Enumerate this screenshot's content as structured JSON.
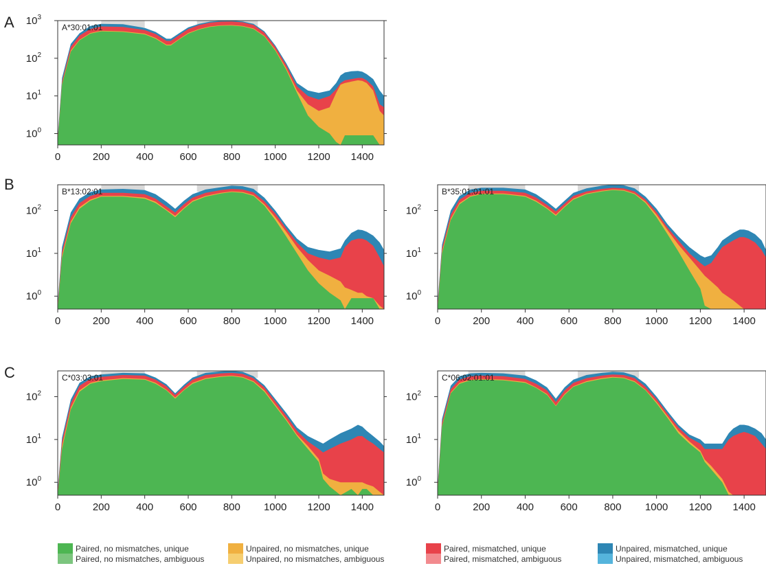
{
  "figure": {
    "panel_letters": [
      "A",
      "B",
      "C"
    ]
  },
  "legend": [
    {
      "label": "Paired, no mismatches, unique",
      "color": "#4DB652"
    },
    {
      "label": "Paired, no mismatches, ambiguous",
      "color": "#7CC57E"
    },
    {
      "label": "Unpaired, no mismatches, unique",
      "color": "#F0B040"
    },
    {
      "label": "Unpaired, no mismatches, ambiguous",
      "color": "#F6CE70"
    },
    {
      "label": "Paired, mismatched, unique",
      "color": "#E8424A"
    },
    {
      "label": "Paired, mismatched, ambiguous",
      "color": "#F28A8E"
    },
    {
      "label": "Unpaired, mismatched, unique",
      "color": "#2E86B4"
    },
    {
      "label": "Unpaired, mismatched, ambiguous",
      "color": "#55B4DC"
    }
  ],
  "chart_data": [
    {
      "type": "area",
      "panel": "A",
      "title": "A*30:01:01",
      "xlim": [
        0,
        1500
      ],
      "ylim": [
        0.5,
        1000
      ],
      "yscale": "log",
      "xticks": [
        0,
        200,
        400,
        600,
        800,
        1000,
        1200,
        1400
      ],
      "yticks": [
        "10^0",
        "10^1",
        "10^2",
        "10^3"
      ],
      "highlight_ranges": [
        [
          200,
          400
        ],
        [
          640,
          920
        ]
      ],
      "x": [
        0,
        20,
        60,
        100,
        150,
        200,
        300,
        400,
        450,
        500,
        520,
        560,
        600,
        650,
        700,
        750,
        800,
        850,
        900,
        950,
        1000,
        1050,
        1100,
        1150,
        1200,
        1250,
        1280,
        1300,
        1320,
        1350,
        1380,
        1400,
        1420,
        1450,
        1480,
        1500
      ],
      "series": [
        {
          "values": [
            0.6,
            20,
            150,
            300,
            450,
            520,
            500,
            430,
            330,
            220,
            220,
            320,
            450,
            580,
            680,
            730,
            740,
            700,
            600,
            380,
            160,
            50,
            12,
            3,
            1.5,
            1.0,
            0.6,
            0.5,
            0.9,
            0.9,
            0.9,
            0.9,
            0.9,
            0.9,
            0.5,
            0.5
          ]
        },
        {
          "values": [
            0.6,
            21,
            160,
            310,
            470,
            540,
            520,
            450,
            345,
            230,
            230,
            330,
            470,
            600,
            700,
            750,
            760,
            720,
            620,
            395,
            170,
            55,
            14,
            6,
            4,
            5,
            12,
            20,
            22,
            24,
            26,
            25,
            22,
            14,
            4,
            3
          ]
        },
        {
          "values": [
            0.7,
            24,
            200,
            400,
            600,
            700,
            680,
            560,
            440,
            290,
            290,
            420,
            600,
            760,
            880,
            940,
            950,
            900,
            770,
            480,
            200,
            66,
            18,
            10,
            8,
            10,
            15,
            22,
            26,
            28,
            30,
            30,
            26,
            18,
            6,
            5
          ]
        },
        {
          "values": [
            0.8,
            30,
            240,
            460,
            720,
            820,
            800,
            640,
            500,
            330,
            330,
            470,
            660,
            820,
            940,
            990,
            1000,
            950,
            820,
            520,
            220,
            75,
            22,
            14,
            12,
            14,
            22,
            35,
            42,
            45,
            46,
            44,
            38,
            28,
            14,
            10
          ]
        }
      ]
    },
    {
      "type": "area",
      "panel": "B",
      "title": "B*13:02:01",
      "xlim": [
        0,
        1500
      ],
      "ylim": [
        0.5,
        400
      ],
      "yscale": "log",
      "xticks": [
        0,
        200,
        400,
        600,
        800,
        1000,
        1200,
        1400
      ],
      "yticks": [
        "10^0",
        "10^1",
        "10^2"
      ],
      "highlight_ranges": [
        [
          200,
          400
        ],
        [
          640,
          920
        ]
      ],
      "x": [
        0,
        20,
        60,
        100,
        150,
        200,
        300,
        400,
        450,
        500,
        540,
        580,
        620,
        680,
        750,
        800,
        850,
        900,
        950,
        1000,
        1050,
        1100,
        1150,
        1200,
        1250,
        1300,
        1320,
        1350,
        1380,
        1400,
        1420,
        1450,
        1480,
        1500
      ],
      "series": [
        {
          "values": [
            0.5,
            8,
            50,
            110,
            170,
            210,
            210,
            190,
            150,
            100,
            70,
            110,
            160,
            210,
            250,
            270,
            260,
            220,
            130,
            60,
            25,
            10,
            4,
            2.0,
            1.2,
            0.8,
            0.5,
            0.9,
            0.9,
            0.9,
            0.9,
            0.9,
            0.5,
            0.5
          ]
        },
        {
          "values": [
            0.5,
            9,
            55,
            120,
            180,
            220,
            220,
            200,
            160,
            105,
            75,
            115,
            170,
            220,
            260,
            280,
            270,
            230,
            140,
            70,
            32,
            14,
            7,
            4,
            3,
            2.2,
            1.6,
            1.4,
            1.2,
            1.2,
            1.0,
            0.9,
            0.6,
            0.5
          ]
        },
        {
          "values": [
            0.6,
            11,
            70,
            150,
            220,
            260,
            260,
            240,
            190,
            125,
            90,
            140,
            200,
            260,
            300,
            320,
            310,
            265,
            165,
            85,
            38,
            18,
            10,
            8,
            7,
            8,
            14,
            20,
            22,
            22,
            20,
            15,
            8,
            5
          ]
        },
        {
          "values": [
            0.7,
            14,
            90,
            190,
            270,
            310,
            320,
            300,
            240,
            160,
            110,
            170,
            240,
            310,
            350,
            380,
            370,
            320,
            200,
            100,
            45,
            22,
            14,
            12,
            11,
            13,
            20,
            30,
            36,
            35,
            32,
            26,
            18,
            12
          ]
        }
      ]
    },
    {
      "type": "area",
      "panel": "B",
      "title": "B*35:01:01:01",
      "xlim": [
        0,
        1500
      ],
      "ylim": [
        0.5,
        400
      ],
      "yscale": "log",
      "xticks": [
        0,
        200,
        400,
        600,
        800,
        1000,
        1200,
        1400
      ],
      "yticks": [
        "10^0",
        "10^1",
        "10^2"
      ],
      "highlight_ranges": [
        [
          140,
          400
        ],
        [
          640,
          920
        ]
      ],
      "x": [
        0,
        20,
        60,
        100,
        150,
        200,
        300,
        400,
        450,
        500,
        540,
        580,
        620,
        680,
        750,
        800,
        850,
        900,
        950,
        1000,
        1050,
        1100,
        1150,
        1200,
        1220,
        1250,
        1280,
        1300,
        1350,
        1380,
        1400,
        1420,
        1450,
        1480,
        1500
      ],
      "series": [
        {
          "values": [
            0.5,
            10,
            60,
            140,
            210,
            240,
            240,
            210,
            160,
            110,
            75,
            120,
            180,
            240,
            280,
            300,
            290,
            240,
            150,
            70,
            28,
            11,
            4,
            1.5,
            0.6,
            0.5,
            0.5,
            0.5,
            0.5,
            0.5,
            0.5,
            0.5,
            0.5,
            0.5,
            0.5
          ]
        },
        {
          "values": [
            0.5,
            11,
            65,
            150,
            220,
            250,
            250,
            220,
            170,
            115,
            80,
            125,
            190,
            250,
            290,
            310,
            300,
            250,
            160,
            80,
            35,
            16,
            8,
            4,
            3,
            2.2,
            1.6,
            1.2,
            0.8,
            0.6,
            0.5,
            0.5,
            0.5,
            0.5,
            0.5
          ]
        },
        {
          "values": [
            0.6,
            13,
            80,
            180,
            260,
            290,
            290,
            260,
            200,
            135,
            95,
            145,
            220,
            280,
            320,
            340,
            330,
            280,
            180,
            92,
            40,
            20,
            10,
            6,
            5,
            6,
            10,
            14,
            20,
            24,
            24,
            22,
            18,
            12,
            8
          ]
        },
        {
          "values": [
            0.7,
            16,
            100,
            220,
            310,
            340,
            340,
            310,
            240,
            160,
            110,
            170,
            260,
            330,
            380,
            400,
            390,
            330,
            210,
            110,
            48,
            25,
            14,
            9,
            8,
            9,
            14,
            20,
            30,
            36,
            36,
            34,
            28,
            20,
            12
          ]
        }
      ]
    },
    {
      "type": "area",
      "panel": "C",
      "title": "C*03:03:01",
      "xlim": [
        0,
        1500
      ],
      "ylim": [
        0.5,
        400
      ],
      "yscale": "log",
      "xticks": [
        0,
        200,
        400,
        600,
        800,
        1000,
        1200,
        1400
      ],
      "yticks": [
        "10^0",
        "10^1",
        "10^2"
      ],
      "highlight_ranges": [
        [
          200,
          400
        ],
        [
          640,
          920
        ]
      ],
      "x": [
        0,
        20,
        60,
        100,
        150,
        200,
        300,
        400,
        450,
        500,
        540,
        580,
        620,
        680,
        750,
        800,
        850,
        900,
        950,
        1000,
        1050,
        1100,
        1150,
        1200,
        1220,
        1250,
        1300,
        1350,
        1380,
        1400,
        1420,
        1450,
        1480,
        1500
      ],
      "series": [
        {
          "values": [
            0.5,
            6,
            50,
            130,
            200,
            230,
            260,
            250,
            200,
            140,
            90,
            140,
            200,
            260,
            290,
            300,
            280,
            220,
            130,
            60,
            28,
            12,
            6,
            3,
            1.2,
            0.8,
            0.5,
            0.7,
            0.5,
            0.7,
            0.7,
            0.5,
            0.5,
            0.5
          ]
        },
        {
          "values": [
            0.5,
            7,
            55,
            140,
            210,
            240,
            270,
            260,
            210,
            145,
            95,
            145,
            210,
            270,
            300,
            310,
            290,
            230,
            140,
            65,
            30,
            13,
            7,
            3.5,
            1.6,
            1.2,
            1.0,
            1.0,
            1.0,
            1.0,
            0.9,
            0.8,
            0.6,
            0.5
          ]
        },
        {
          "values": [
            0.6,
            9,
            70,
            180,
            260,
            290,
            320,
            310,
            250,
            175,
            110,
            170,
            250,
            320,
            350,
            360,
            340,
            270,
            165,
            78,
            36,
            16,
            9,
            6,
            5,
            6,
            8,
            10,
            12,
            12,
            10,
            8,
            6,
            5
          ]
        },
        {
          "values": [
            0.7,
            11,
            85,
            210,
            300,
            330,
            360,
            350,
            280,
            195,
            120,
            190,
            280,
            360,
            390,
            400,
            380,
            300,
            185,
            88,
            42,
            19,
            12,
            9,
            8,
            10,
            14,
            18,
            22,
            20,
            16,
            12,
            9,
            7
          ]
        }
      ]
    },
    {
      "type": "area",
      "panel": "C",
      "title": "C*06:02:01:01",
      "xlim": [
        0,
        1500
      ],
      "ylim": [
        0.5,
        400
      ],
      "yscale": "log",
      "xticks": [
        0,
        200,
        400,
        600,
        800,
        1000,
        1200,
        1400
      ],
      "yticks": [
        "10^0",
        "10^1",
        "10^2"
      ],
      "highlight_ranges": [
        [
          140,
          400
        ],
        [
          640,
          920
        ]
      ],
      "x": [
        0,
        20,
        60,
        100,
        150,
        200,
        300,
        400,
        450,
        500,
        540,
        580,
        620,
        680,
        750,
        800,
        850,
        900,
        950,
        1000,
        1050,
        1100,
        1150,
        1200,
        1220,
        1250,
        1300,
        1330,
        1350,
        1380,
        1400,
        1420,
        1450,
        1480,
        1500
      ],
      "series": [
        {
          "values": [
            0.6,
            20,
            120,
            200,
            240,
            250,
            240,
            210,
            160,
            110,
            60,
            110,
            170,
            220,
            260,
            280,
            270,
            220,
            140,
            70,
            32,
            14,
            8,
            5,
            3,
            2.0,
            1.0,
            0.5,
            0.5,
            0.5,
            0.5,
            0.5,
            0.5,
            0.5,
            0.5
          ]
        },
        {
          "values": [
            0.6,
            21,
            125,
            210,
            250,
            260,
            250,
            220,
            165,
            115,
            62,
            115,
            175,
            230,
            270,
            290,
            280,
            230,
            145,
            75,
            35,
            16,
            9,
            5.5,
            3.4,
            2.4,
            1.2,
            0.6,
            0.5,
            0.5,
            0.5,
            0.5,
            0.5,
            0.5,
            0.5
          ]
        },
        {
          "values": [
            0.7,
            25,
            150,
            250,
            300,
            310,
            300,
            260,
            200,
            140,
            75,
            140,
            210,
            270,
            310,
            330,
            320,
            270,
            170,
            88,
            40,
            19,
            11,
            8,
            6,
            6,
            6,
            10,
            12,
            14,
            15,
            14,
            12,
            8,
            6
          ]
        },
        {
          "values": [
            0.8,
            30,
            180,
            300,
            350,
            360,
            350,
            310,
            240,
            165,
            90,
            165,
            250,
            320,
            360,
            380,
            370,
            310,
            200,
            100,
            46,
            22,
            13,
            10,
            8,
            8,
            8,
            14,
            18,
            22,
            22,
            21,
            18,
            14,
            10
          ]
        }
      ]
    }
  ]
}
